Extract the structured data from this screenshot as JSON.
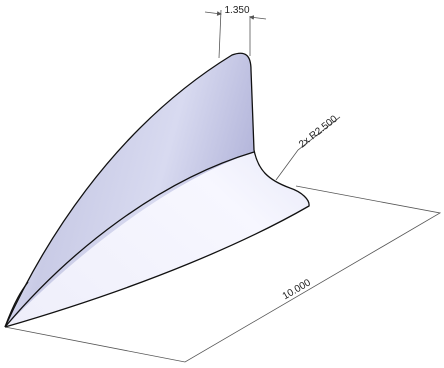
{
  "dimensions": {
    "thickness": "1.350",
    "radius": "2x R2.500",
    "length": "10.000"
  }
}
